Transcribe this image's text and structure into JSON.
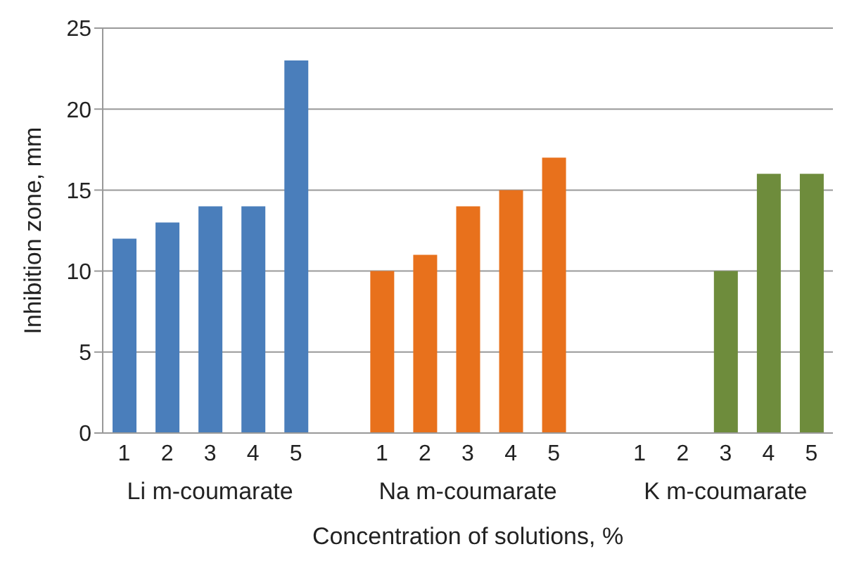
{
  "chart_data": {
    "type": "bar",
    "xlabel": "Concentration of solutions, %",
    "ylabel": "Inhibition zone, mm",
    "categories": [
      "1",
      "2",
      "3",
      "4",
      "5",
      null,
      "1",
      "2",
      "3",
      "4",
      "5",
      null,
      "1",
      "2",
      "3",
      "4",
      "5"
    ],
    "values": [
      12,
      13,
      14,
      14,
      23,
      null,
      10,
      11,
      14,
      15,
      17,
      null,
      0,
      0,
      10,
      16,
      16
    ],
    "colors": [
      "#4a7ebb",
      "#4a7ebb",
      "#4a7ebb",
      "#4a7ebb",
      "#4a7ebb",
      "#ffffff",
      "#e8711c",
      "#e8711c",
      "#e8711c",
      "#e8711c",
      "#e8711c",
      "#ffffff",
      "#6e8c3c",
      "#6e8c3c",
      "#6e8c3c",
      "#6e8c3c",
      "#6e8c3c"
    ],
    "annotations": [
      "Li m-coumarate",
      "Na m-coumarate",
      "K m-coumarate"
    ],
    "ylim": [
      0,
      25
    ],
    "yticks": [
      0,
      5,
      10,
      15,
      20,
      25
    ],
    "grid": "y"
  }
}
